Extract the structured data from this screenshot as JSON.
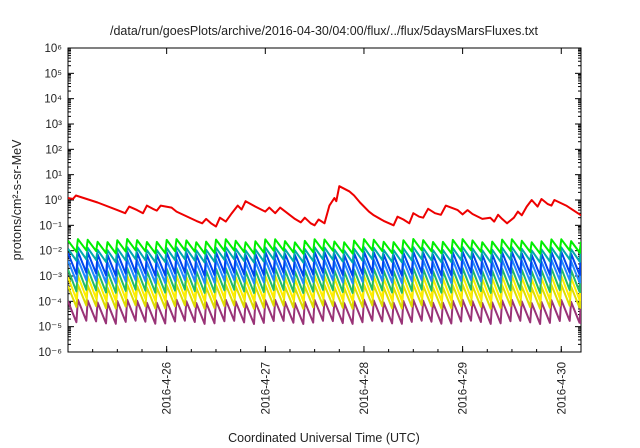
{
  "chart_data": {
    "type": "line",
    "title": "/data/run/goesPlots/archive/2016-04-30/04:00/flux/../flux/5daysMarsFluxes.txt",
    "xlabel": "Coordinated Universal Time (UTC)",
    "ylabel": "protons/cm²-s-sr-MeV",
    "yscale": "log",
    "ylim_exponents": [
      -6,
      6
    ],
    "y_tick_labels": [
      "10⁻⁶",
      "10⁻⁵",
      "10⁻⁴",
      "10⁻³",
      "10⁻²",
      "10⁻¹",
      "10⁰",
      "10¹",
      "10²",
      "10³",
      "10⁴",
      "10⁵",
      "10⁶"
    ],
    "x_tick_labels": [
      "2016-4-26",
      "2016-4-27",
      "2016-4-28",
      "2016-4-29",
      "2016-4-30"
    ],
    "xlim_days": [
      25.0,
      30.2
    ],
    "grid": false,
    "legend": "none",
    "series": [
      {
        "color": "#ee0000",
        "points": [
          [
            25.0,
            1.2
          ],
          [
            25.05,
            1.1
          ],
          [
            25.08,
            1.5
          ],
          [
            25.3,
            0.8
          ],
          [
            25.5,
            0.4
          ],
          [
            25.58,
            0.3
          ],
          [
            25.62,
            0.55
          ],
          [
            25.7,
            0.4
          ],
          [
            25.76,
            0.3
          ],
          [
            25.8,
            0.6
          ],
          [
            25.86,
            0.45
          ],
          [
            25.9,
            0.38
          ],
          [
            25.94,
            0.6
          ],
          [
            26.05,
            0.5
          ],
          [
            26.1,
            0.35
          ],
          [
            26.3,
            0.15
          ],
          [
            26.36,
            0.12
          ],
          [
            26.4,
            0.18
          ],
          [
            26.45,
            0.12
          ],
          [
            26.5,
            0.09
          ],
          [
            26.54,
            0.2
          ],
          [
            26.6,
            0.14
          ],
          [
            26.66,
            0.3
          ],
          [
            26.72,
            0.6
          ],
          [
            26.76,
            0.42
          ],
          [
            26.8,
            0.9
          ],
          [
            26.9,
            0.55
          ],
          [
            27.0,
            0.35
          ],
          [
            27.04,
            0.5
          ],
          [
            27.1,
            0.3
          ],
          [
            27.15,
            0.5
          ],
          [
            27.3,
            0.18
          ],
          [
            27.36,
            0.13
          ],
          [
            27.4,
            0.2
          ],
          [
            27.46,
            0.12
          ],
          [
            27.5,
            0.1
          ],
          [
            27.54,
            0.17
          ],
          [
            27.6,
            0.12
          ],
          [
            27.65,
            0.6
          ],
          [
            27.7,
            1.2
          ],
          [
            27.72,
            0.9
          ],
          [
            27.75,
            3.5
          ],
          [
            27.85,
            2.2
          ],
          [
            27.9,
            1.5
          ],
          [
            27.96,
            0.8
          ],
          [
            28.05,
            0.35
          ],
          [
            28.1,
            0.25
          ],
          [
            28.2,
            0.15
          ],
          [
            28.3,
            0.1
          ],
          [
            28.34,
            0.22
          ],
          [
            28.4,
            0.17
          ],
          [
            28.46,
            0.12
          ],
          [
            28.5,
            0.3
          ],
          [
            28.56,
            0.22
          ],
          [
            28.6,
            0.2
          ],
          [
            28.65,
            0.45
          ],
          [
            28.72,
            0.3
          ],
          [
            28.78,
            0.26
          ],
          [
            28.83,
            0.6
          ],
          [
            28.95,
            0.4
          ],
          [
            29.0,
            0.27
          ],
          [
            29.05,
            0.4
          ],
          [
            29.1,
            0.28
          ],
          [
            29.2,
            0.18
          ],
          [
            29.28,
            0.2
          ],
          [
            29.32,
            0.14
          ],
          [
            29.36,
            0.26
          ],
          [
            29.4,
            0.18
          ],
          [
            29.45,
            0.12
          ],
          [
            29.52,
            0.2
          ],
          [
            29.56,
            0.35
          ],
          [
            29.6,
            0.25
          ],
          [
            29.65,
            0.55
          ],
          [
            29.7,
            1.0
          ],
          [
            29.76,
            0.55
          ],
          [
            29.8,
            1.1
          ],
          [
            29.86,
            0.7
          ],
          [
            29.9,
            0.6
          ],
          [
            29.93,
            1.0
          ],
          [
            30.05,
            0.6
          ],
          [
            30.2,
            0.25
          ]
        ]
      },
      {
        "color": "#00ee00",
        "sawtooth": {
          "period": 0.1,
          "peak": 0.025,
          "trough": 0.009
        }
      },
      {
        "color": "#00aaaa",
        "sawtooth": {
          "period": 0.1,
          "peak": 0.012,
          "trough": 0.004
        }
      },
      {
        "color": "#0044ee",
        "sawtooth": {
          "period": 0.1,
          "peak": 0.008,
          "trough": 0.0012
        }
      },
      {
        "color": "#2288ff",
        "sawtooth": {
          "period": 0.1,
          "peak": 0.004,
          "trough": 0.0006
        }
      },
      {
        "color": "#22bb66",
        "sawtooth": {
          "period": 0.1,
          "peak": 0.0018,
          "trough": 0.00025
        }
      },
      {
        "color": "#ffee00",
        "sawtooth": {
          "period": 0.1,
          "peak": 0.0009,
          "trough": 0.00012
        }
      },
      {
        "color": "#dddd00",
        "sawtooth": {
          "period": 0.1,
          "peak": 0.0004,
          "trough": 6e-05
        }
      },
      {
        "color": "#993377",
        "sawtooth": {
          "period": 0.1,
          "peak": 0.0001,
          "trough": 1.5e-05
        }
      }
    ]
  }
}
